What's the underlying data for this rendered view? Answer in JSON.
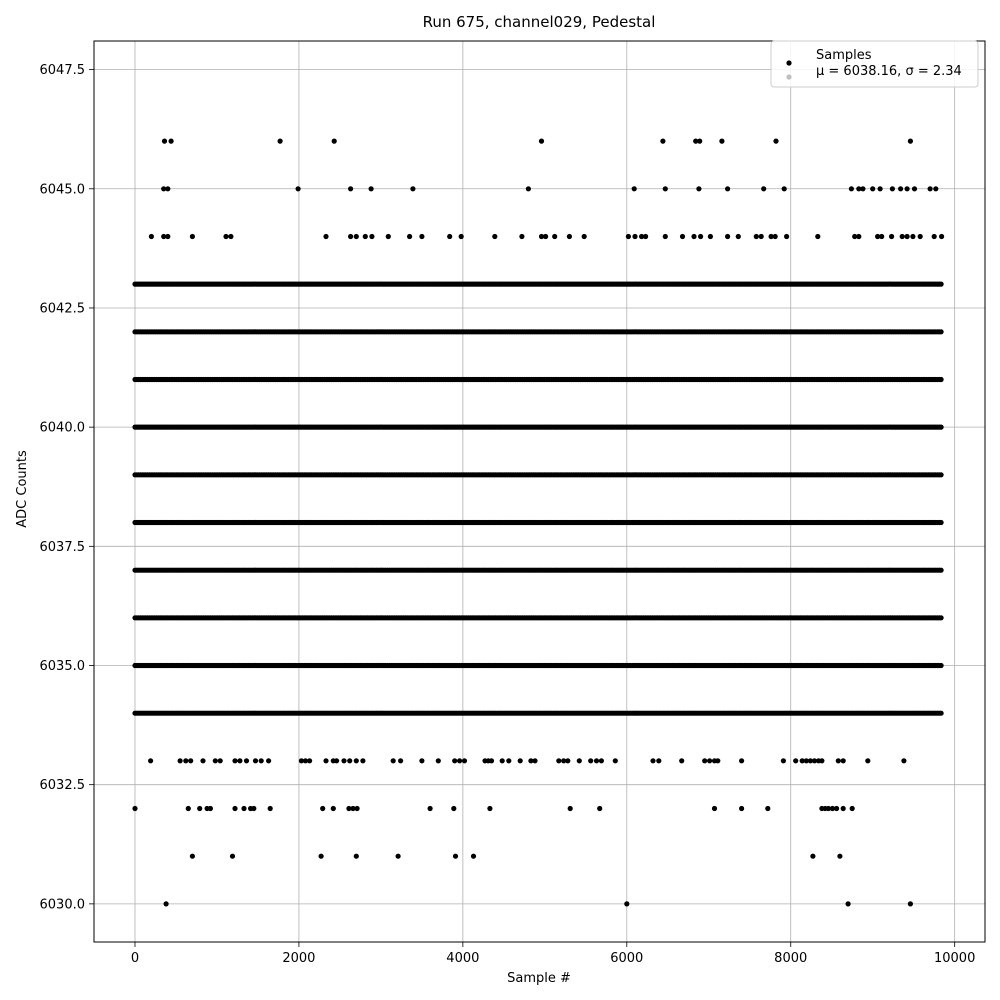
{
  "chart_data": {
    "type": "scatter",
    "title": "Run 675, channel029, Pedestal",
    "xlabel": "Sample #",
    "ylabel": "ADC Counts",
    "xlim": [
      -500,
      10370
    ],
    "ylim": [
      6029.2,
      6048.1
    ],
    "xticks": [
      0,
      2000,
      4000,
      6000,
      8000,
      10000
    ],
    "xtick_labels": [
      "0",
      "2000",
      "4000",
      "6000",
      "8000",
      "10000"
    ],
    "yticks": [
      6030.0,
      6032.5,
      6035.0,
      6037.5,
      6040.0,
      6042.5,
      6045.0,
      6047.5
    ],
    "ytick_labels": [
      "6030.0",
      "6032.5",
      "6035.0",
      "6037.5",
      "6040.0",
      "6042.5",
      "6045.0",
      "6047.5"
    ],
    "grid": true,
    "legend_position": "top-right",
    "marker_color": "#000000",
    "legend": [
      {
        "label": "Samples",
        "color": "#000000"
      },
      {
        "label": "μ = 6038.16, σ = 2.34",
        "color": "#bfbfbf"
      }
    ],
    "series": [
      {
        "name": "Samples",
        "x_range": [
          0,
          9840
        ],
        "sample_count": 9841,
        "level_points": [
          {
            "y": 6030,
            "x": [
              380,
              6000,
              8700,
              9460
            ]
          },
          {
            "y": 6031,
            "x": [
              700,
              1190,
              2270,
              2700,
              3210,
              3910,
              4130,
              8270,
              8600
            ]
          },
          {
            "y": 6032,
            "x": [
              0,
              650,
              790,
              880,
              920,
              1220,
              1330,
              1410,
              1450,
              1650,
              2290,
              2420,
              2610,
              2660,
              2710,
              3600,
              3890,
              4330,
              5310,
              5670,
              7070,
              7400,
              7720,
              8380,
              8420,
              8460,
              8510,
              8560,
              8640,
              8750
            ]
          },
          {
            "y": 6033,
            "x": [
              190,
              550,
              620,
              680,
              830,
              980,
              1040,
              1220,
              1280,
              1360,
              1470,
              1540,
              1630,
              2030,
              2080,
              2130,
              2330,
              2420,
              2460,
              2550,
              2620,
              2700,
              2780,
              3150,
              3240,
              3500,
              3700,
              3900,
              3960,
              4020,
              4270,
              4310,
              4350,
              4480,
              4560,
              4700,
              4830,
              4880,
              5170,
              5230,
              5280,
              5420,
              5560,
              5630,
              5690,
              5860,
              6320,
              6390,
              6670,
              6950,
              7010,
              7070,
              7110,
              7400,
              7910,
              8060,
              8140,
              8190,
              8240,
              8290,
              8340,
              8380,
              8580,
              8640,
              8940,
              9380
            ]
          },
          {
            "y": 6044,
            "x": [
              200,
              350,
              400,
              700,
              1110,
              1170,
              2330,
              2630,
              2700,
              2810,
              2890,
              3090,
              3350,
              3500,
              3840,
              3980,
              4390,
              4720,
              4960,
              5010,
              5120,
              5300,
              5480,
              6020,
              6100,
              6180,
              6230,
              6470,
              6680,
              6820,
              6900,
              7020,
              7230,
              7360,
              7580,
              7640,
              7760,
              7810,
              7950,
              8330,
              8780,
              8830,
              9060,
              9110,
              9230,
              9360,
              9420,
              9490,
              9580,
              9750,
              9840
            ]
          },
          {
            "y": 6045,
            "x": [
              350,
              400,
              1990,
              2630,
              2880,
              3390,
              4800,
              6090,
              6470,
              6880,
              7230,
              7670,
              7920,
              8740,
              8830,
              8880,
              9000,
              9090,
              9240,
              9340,
              9420,
              9510,
              9700,
              9770
            ]
          },
          {
            "y": 6046,
            "x": [
              360,
              440,
              1770,
              2430,
              4960,
              6440,
              6840,
              6890,
              7160,
              7820,
              9460
            ]
          }
        ],
        "dense_levels": [
          6034,
          6035,
          6036,
          6037,
          6038,
          6039,
          6040,
          6041,
          6042,
          6043
        ]
      }
    ]
  }
}
